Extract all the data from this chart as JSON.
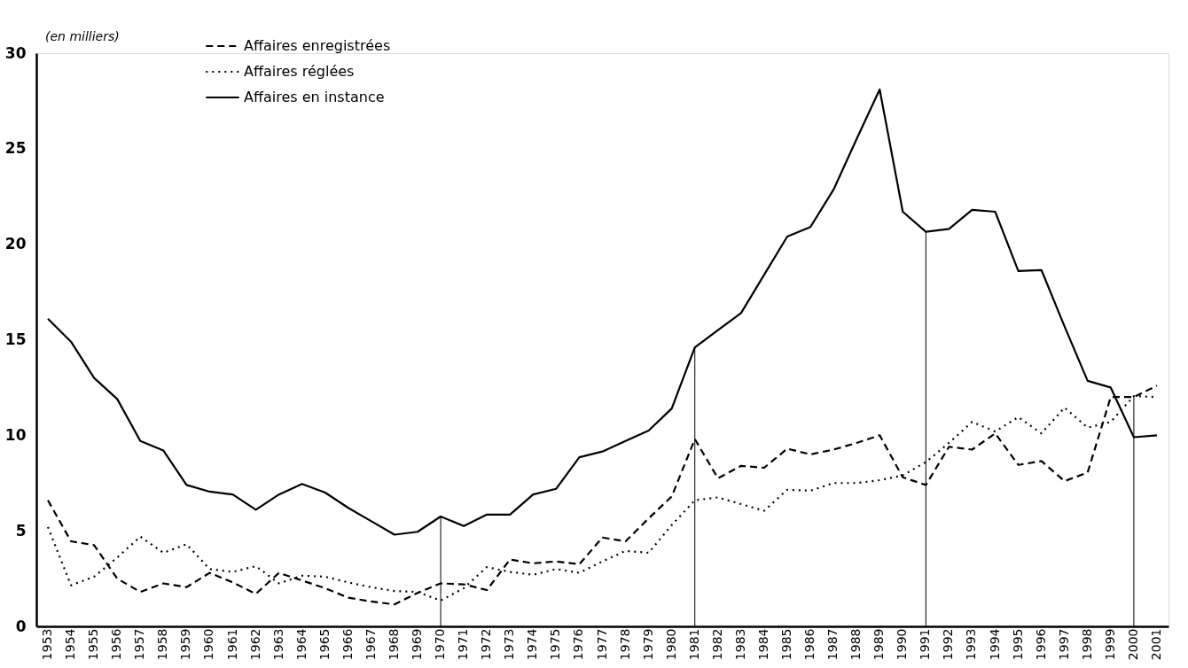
{
  "chart_data": {
    "type": "line",
    "annotations": [
      "(en milliers)"
    ],
    "categories": [
      "1953",
      "1954",
      "1955",
      "1956",
      "1957",
      "1958",
      "1959",
      "1960",
      "1961",
      "1962",
      "1963",
      "1964",
      "1965",
      "1966",
      "1967",
      "1968",
      "1969",
      "1970",
      "1971",
      "1972",
      "1973",
      "1974",
      "1975",
      "1976",
      "1977",
      "1978",
      "1979",
      "1980",
      "1981",
      "1982",
      "1983",
      "1984",
      "1985",
      "1986",
      "1987",
      "1988",
      "1989",
      "1990",
      "1991",
      "1992",
      "1993",
      "1994",
      "1995",
      "1996",
      "1997",
      "1998",
      "1999",
      "2000",
      "2001"
    ],
    "series": [
      {
        "name": "Affaires enregistrées",
        "color": "#000000",
        "line_style": "dashed",
        "values": [
          6.6,
          4.45,
          4.25,
          2.5,
          1.8,
          2.25,
          2.05,
          2.8,
          2.3,
          1.7,
          2.8,
          2.4,
          2.0,
          1.5,
          1.3,
          1.15,
          1.75,
          2.25,
          2.2,
          1.9,
          3.5,
          3.3,
          3.4,
          3.25,
          4.65,
          4.45,
          5.65,
          6.8,
          9.8,
          7.75,
          8.4,
          8.3,
          9.3,
          9.0,
          9.25,
          9.6,
          10.0,
          7.8,
          7.4,
          9.4,
          9.25,
          10.1,
          8.45,
          8.65,
          7.6,
          8.05,
          12.0,
          12.0,
          12.6
        ]
      },
      {
        "name": "Affaires réglées",
        "color": "#000000",
        "line_style": "dotted",
        "values": [
          5.2,
          2.15,
          2.6,
          3.6,
          4.7,
          3.85,
          4.3,
          3.0,
          2.85,
          3.15,
          2.25,
          2.65,
          2.6,
          2.3,
          2.05,
          1.85,
          1.8,
          1.35,
          2.0,
          3.1,
          2.85,
          2.7,
          3.0,
          2.8,
          3.4,
          3.95,
          3.85,
          5.3,
          6.6,
          6.75,
          6.4,
          6.05,
          7.15,
          7.1,
          7.5,
          7.5,
          7.65,
          7.9,
          8.6,
          9.6,
          10.7,
          10.2,
          10.95,
          10.1,
          11.45,
          10.4,
          10.7,
          12.05,
          12.0
        ]
      },
      {
        "name": "Affaires en instance",
        "color": "#000000",
        "line_style": "solid",
        "values": [
          16.1,
          14.9,
          13.0,
          11.9,
          9.7,
          9.2,
          7.4,
          7.05,
          6.9,
          6.1,
          6.9,
          7.45,
          7.0,
          6.2,
          5.5,
          4.8,
          4.95,
          5.75,
          5.25,
          5.85,
          5.85,
          6.9,
          7.2,
          8.85,
          9.15,
          9.7,
          10.25,
          11.4,
          14.6,
          15.5,
          16.4,
          18.4,
          20.4,
          20.9,
          22.85,
          25.5,
          28.1,
          21.7,
          20.65,
          20.8,
          21.8,
          21.7,
          18.6,
          18.65,
          15.7,
          12.85,
          12.5,
          9.9,
          10.0
        ]
      }
    ],
    "ylim": [
      0,
      30
    ],
    "yticks": [
      0,
      5,
      10,
      15,
      20,
      25,
      30
    ],
    "ref_lines": [
      {
        "axis": "x",
        "value": "1970",
        "color": "#000000"
      },
      {
        "axis": "x",
        "value": "1981",
        "color": "#000000"
      },
      {
        "axis": "x",
        "value": "1991",
        "color": "#000000"
      },
      {
        "axis": "x",
        "value": "2000",
        "color": "#000000"
      }
    ],
    "grid": false,
    "legend": "top left"
  }
}
